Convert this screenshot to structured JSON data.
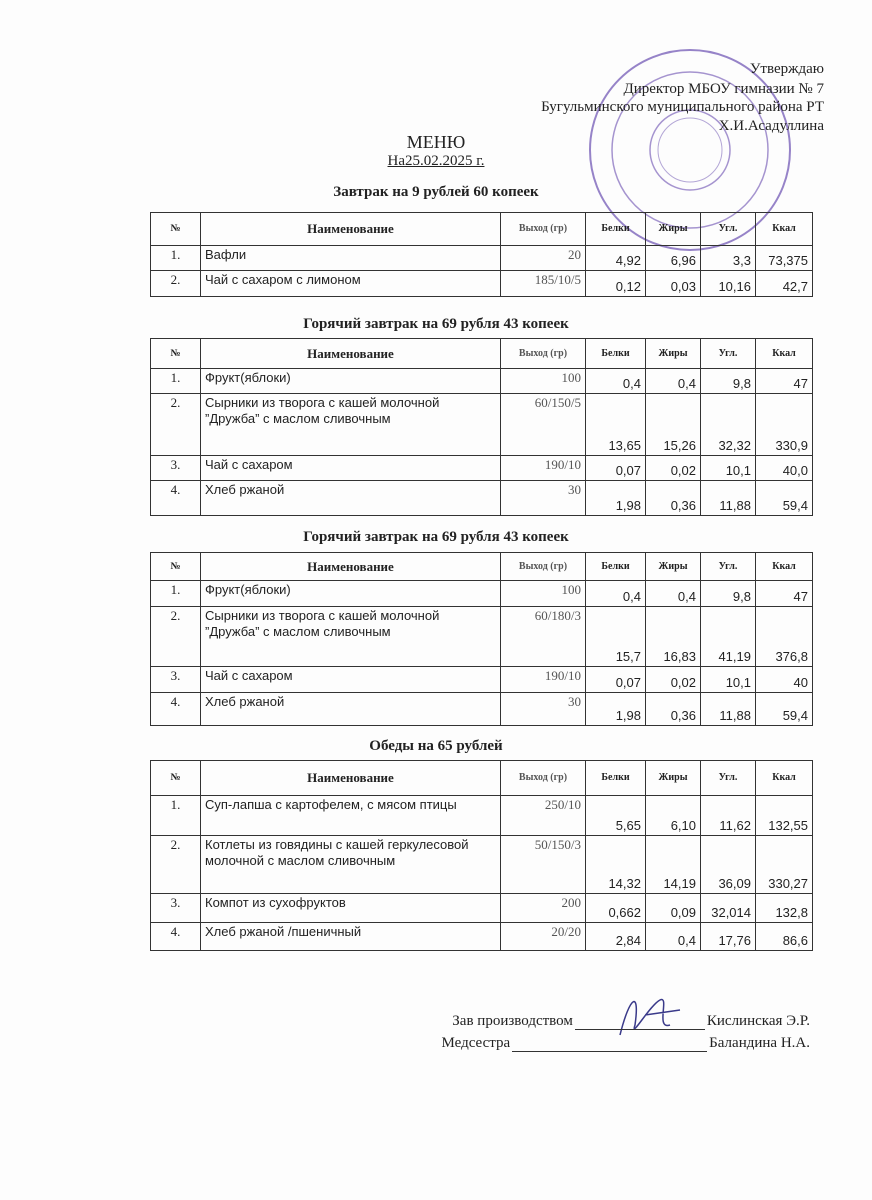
{
  "approval": {
    "line1": "Утверждаю",
    "line2": "Директор МБОУ гимназии № 7",
    "line3": "Бугульминского муниципального района РТ",
    "line4": "Х.И.Асадуллина"
  },
  "header": {
    "title": "МЕНЮ",
    "date": "На25.02.2025 г."
  },
  "sections": [
    {
      "heading": "Завтрак на 9 рублей 60 копеек",
      "columns": [
        "№",
        "Наименование",
        "Выход (гр)",
        "Белки",
        "Жиры",
        "Угл.",
        "Ккал"
      ],
      "rows": [
        [
          "1.",
          "Вафли",
          "20",
          "4,92",
          "6,96",
          "3,3",
          "73,375"
        ],
        [
          "2.",
          "Чай с сахаром с лимоном",
          "185/10/5",
          "0,12",
          "0,03",
          "10,16",
          "42,7"
        ]
      ]
    },
    {
      "heading": "Горячий завтрак на 69 рубля 43 копеек",
      "columns": [
        "№",
        "Наименование",
        "Выход (гр)",
        "Белки",
        "Жиры",
        "Угл.",
        "Ккал"
      ],
      "rows": [
        [
          "1.",
          "Фрукт(яблоки)",
          "100",
          "0,4",
          "0,4",
          "9,8",
          "47"
        ],
        [
          "2.",
          "Сырники из творога с кашей молочной ”Дружба” с маслом сливочным",
          "60/150/5",
          "13,65",
          "15,26",
          "32,32",
          "330,9"
        ],
        [
          "3.",
          "Чай с сахаром",
          "190/10",
          "0,07",
          "0,02",
          "10,1",
          "40,0"
        ],
        [
          "4.",
          "Хлеб ржаной",
          "30",
          "1,98",
          "0,36",
          "11,88",
          "59,4"
        ]
      ]
    },
    {
      "heading": "Горячий завтрак на 69 рубля 43 копеек",
      "columns": [
        "№",
        "Наименование",
        "Выход (гр)",
        "Белки",
        "Жиры",
        "Угл.",
        "Ккал"
      ],
      "rows": [
        [
          "1.",
          "Фрукт(яблоки)",
          "100",
          "0,4",
          "0,4",
          "9,8",
          "47"
        ],
        [
          "2.",
          "Сырники из творога с кашей молочной ”Дружба” с маслом сливочным",
          "60/180/3",
          "15,7",
          "16,83",
          "41,19",
          "376,8"
        ],
        [
          "3.",
          "Чай с сахаром",
          "190/10",
          "0,07",
          "0,02",
          "10,1",
          "40"
        ],
        [
          "4.",
          "Хлеб ржаной",
          "30",
          "1,98",
          "0,36",
          "11,88",
          "59,4"
        ]
      ]
    },
    {
      "heading": "Обеды на 65 рублей",
      "columns": [
        "№",
        "Наименование",
        "Выход (гр)",
        "Белки",
        "Жиры",
        "Угл.",
        "Ккал"
      ],
      "rows": [
        [
          "1.",
          "Суп-лапша с картофелем, с мясом птицы",
          "250/10",
          "5,65",
          "6,10",
          "11,62",
          "132,55"
        ],
        [
          "2.",
          "Котлеты из говядины с кашей геркулесовой молочной с маслом сливочным",
          "50/150/3",
          "14,32",
          "14,19",
          "36,09",
          "330,27"
        ],
        [
          "3.",
          "Компот из сухофруктов",
          "200",
          "0,662",
          "0,09",
          "32,014",
          "132,8"
        ],
        [
          "4.",
          "Хлеб ржаной /пшеничный",
          "20/20",
          "2,84",
          "0,4",
          "17,76",
          "86,6"
        ]
      ]
    }
  ],
  "signatures": [
    {
      "role": "Зав производством",
      "name": "Кислинская Э.Р."
    },
    {
      "role": "Медсестра",
      "name": "Баландина Н.А."
    }
  ]
}
